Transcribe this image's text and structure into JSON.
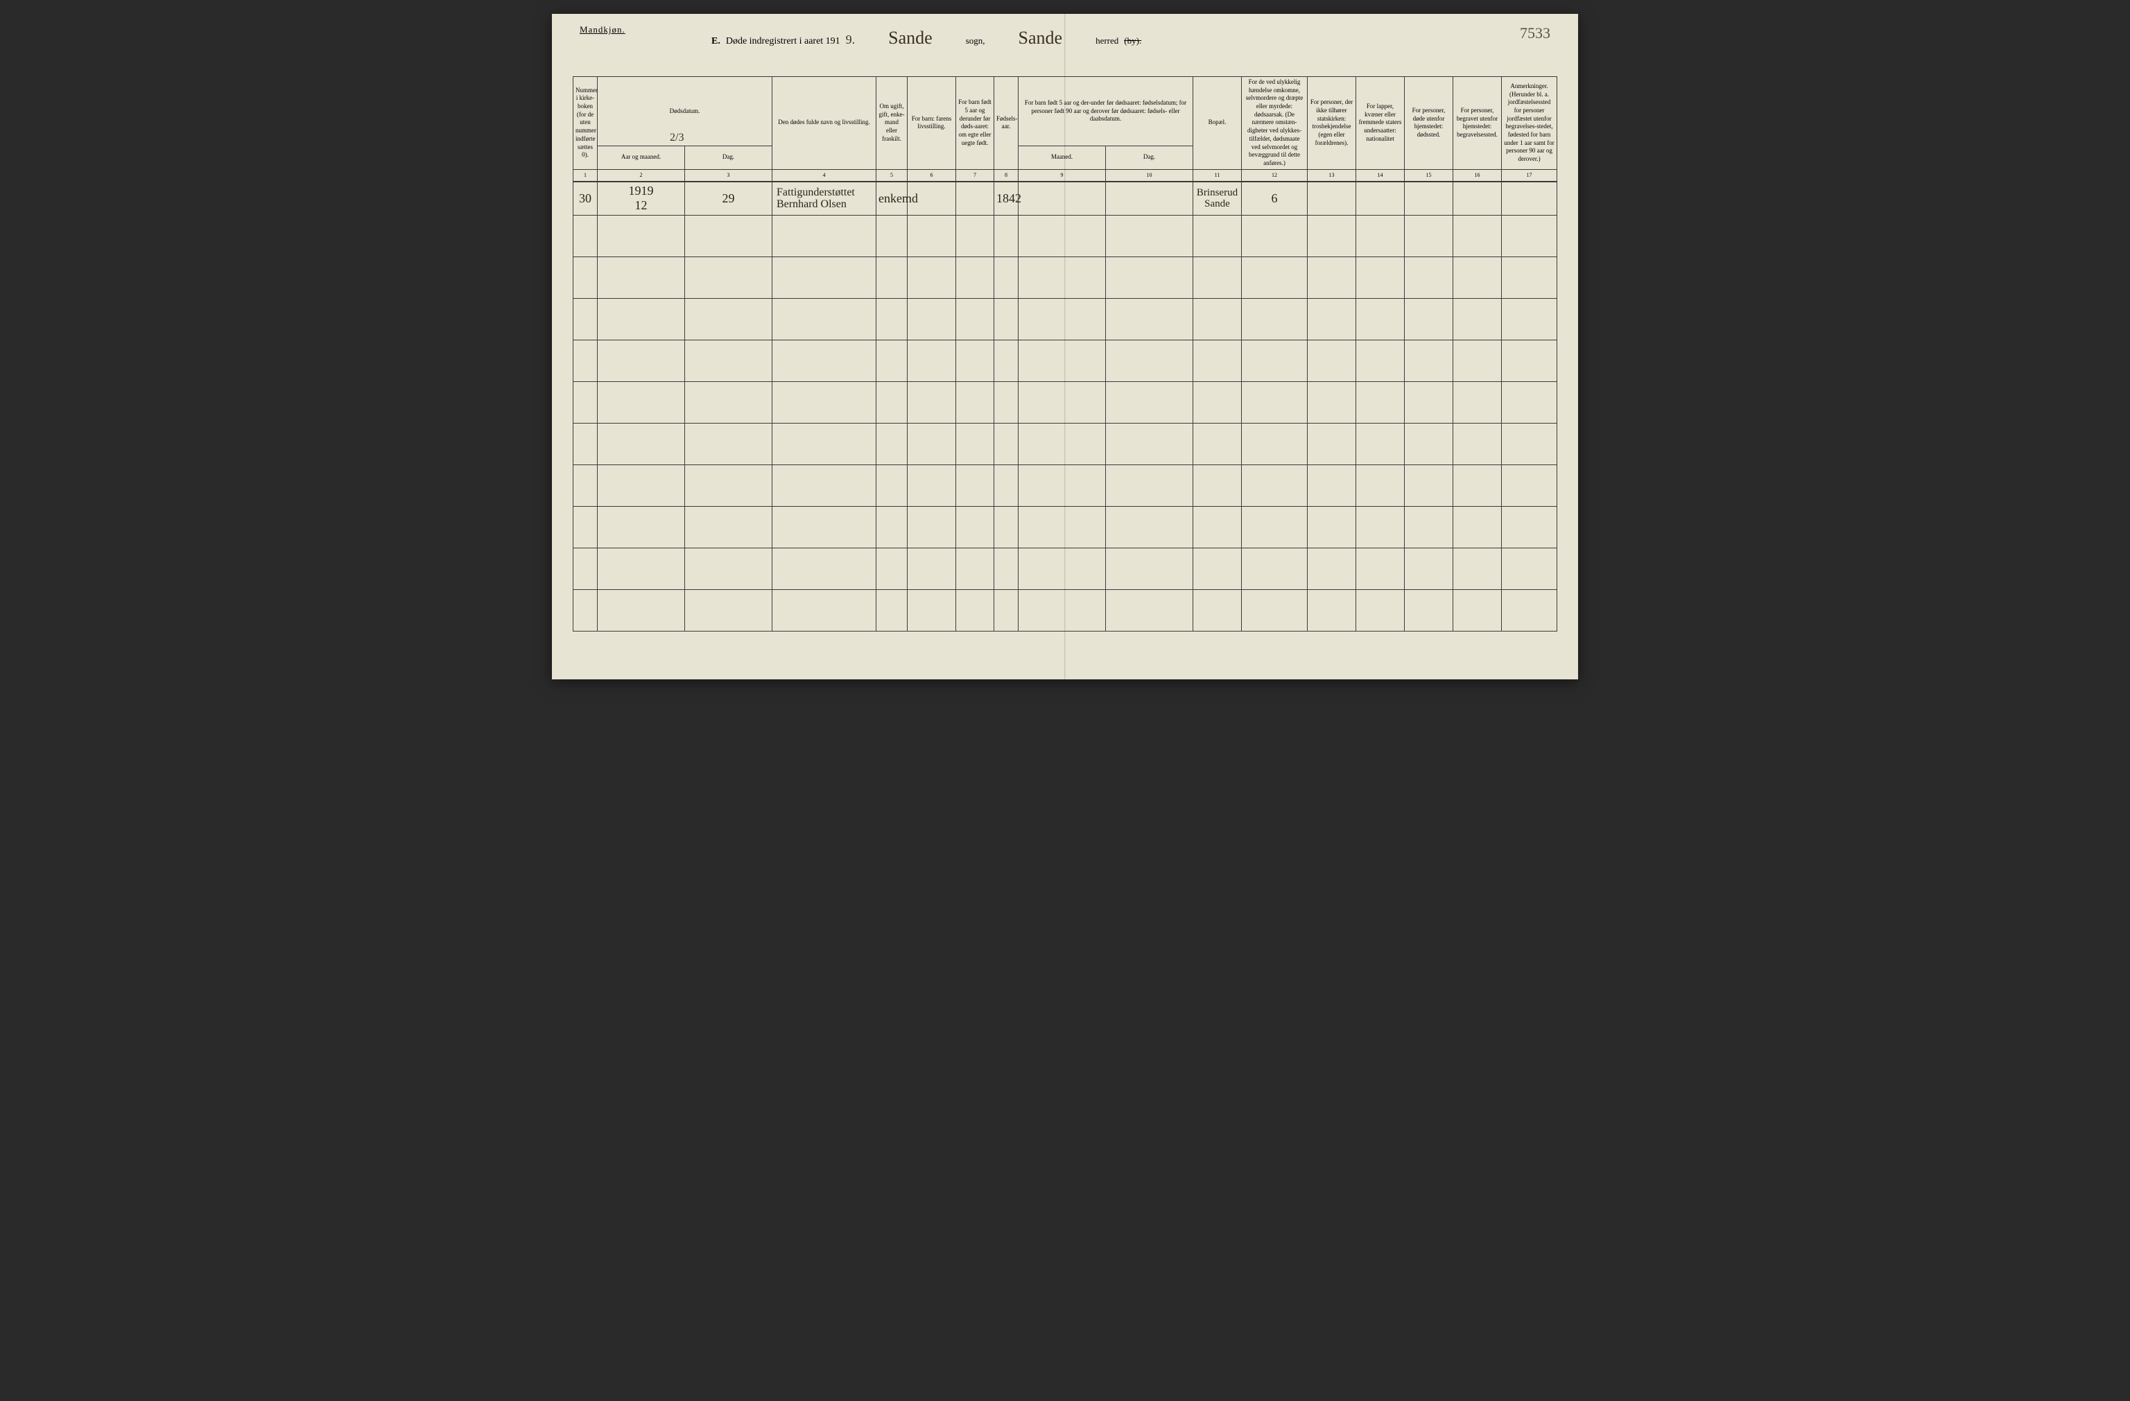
{
  "header": {
    "gender_label": "Mandkjøn.",
    "page_number": "7533",
    "title_prefix": "E.",
    "title_main": "Døde indregistrert i aaret 191",
    "title_year_suffix": "9.",
    "sogn_name": "Sande",
    "sogn_label": "sogn,",
    "herred_name": "Sande",
    "herred_label": "herred",
    "herred_strike": "(by)."
  },
  "notes": {
    "note_213": "2/3"
  },
  "columns": {
    "c1": "Nummer i kirke-boken (for de uten nummer indførte sættes 0).",
    "c2_top": "Dødsdatum.",
    "c2_aar": "Aar og maaned.",
    "c2_dag": "Dag.",
    "c4": "Den dødes fulde navn og livsstilling.",
    "c5": "Om ugift, gift, enke-mand eller fraskilt.",
    "c6": "For barn: farens livsstilling.",
    "c7": "For barn født 5 aar og derunder før døds-aaret: om egte eller uegte født.",
    "c8": "Fødsels-aar.",
    "c9_top": "For barn født 5 aar og der-under før dødsaaret: fødselsdatum; for personer født 90 aar og derover før dødsaaret: fødsels- eller daabsdatum.",
    "c9_maaned": "Maaned.",
    "c9_dag": "Dag.",
    "c11": "Bopæl.",
    "c12": "For de ved ulykkelig hændelse omkomne, selvmordere og dræpte eller myrdede: dødsaarsak. (De nærmere omstæn-digheter ved ulykkes-tilfældet, dødsmaate ved selvmordet og bevæggrund til dette anføres.)",
    "c13": "For personer, der ikke tilhører statskirken: trosbekjendelse (egen eller forældrenes).",
    "c14": "For lapper, kvæner eller fremmede staters undersaatter: nationalitet",
    "c15": "For personer, døde utenfor hjemstedet: dødssted.",
    "c16": "For personer, begravet utenfor hjemstedet: begravelsessted.",
    "c17": "Anmerkninger. (Herunder bl. a. jordfæstelsessted for personer jordfæstet utenfor begravelses-stedet, fødested for barn under 1 aar samt for personer 90 aar og derover.)"
  },
  "col_numbers": [
    "1",
    "2",
    "3",
    "4",
    "5",
    "6",
    "7",
    "8",
    "9",
    "10",
    "11",
    "12",
    "13",
    "14",
    "15",
    "16",
    "17"
  ],
  "rows": [
    {
      "num": "30",
      "aar_line1": "1919",
      "aar_line2": "12",
      "dag": "29",
      "name_line1": "Fattigunderstøttet",
      "name_line2": "Bernhard Olsen",
      "status": "enkemd",
      "farens": "",
      "barn5": "",
      "fodaar": "1842",
      "maaned": "",
      "dag2": "",
      "bopael_line1": "Brinserud",
      "bopael_line2": "Sande",
      "aarsak": "6",
      "stats": "",
      "lapper": "",
      "dodssted": "",
      "begrav": "",
      "anm": ""
    }
  ],
  "empty_row_count": 10,
  "colors": {
    "page_bg": "#e8e4d4",
    "border": "#3a3a3a",
    "ink": "#2a2418",
    "handwriting": "#3a3020"
  }
}
